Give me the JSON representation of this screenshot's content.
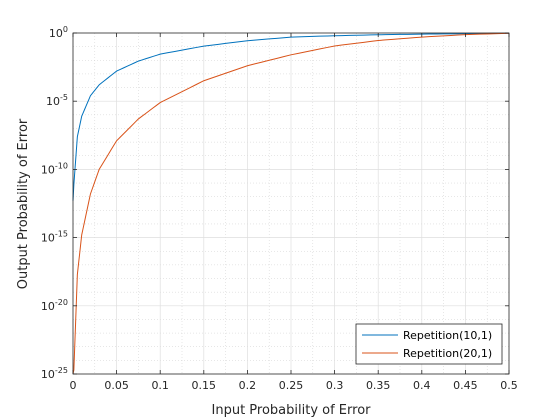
{
  "chart_data": {
    "type": "line",
    "title": "",
    "xlabel": "Input Probability of Error",
    "ylabel": "Output Probability of Error",
    "xlim": [
      0,
      0.5
    ],
    "ylim_log10": [
      -25,
      0
    ],
    "y_scale": "log",
    "grid": true,
    "minor_grid": true,
    "legend_position": "bottom-right",
    "x_ticks": [
      "0",
      "0.05",
      "0.1",
      "0.15",
      "0.2",
      "0.25",
      "0.3",
      "0.35",
      "0.4",
      "0.45",
      "0.5"
    ],
    "y_ticks": [
      {
        "base": "10",
        "exp": "0"
      },
      {
        "base": "10",
        "exp": "-5"
      },
      {
        "base": "10",
        "exp": "-10"
      },
      {
        "base": "10",
        "exp": "-15"
      },
      {
        "base": "10",
        "exp": "-20"
      },
      {
        "base": "10",
        "exp": "-25"
      }
    ],
    "series": [
      {
        "name": "Repetition(10,1)",
        "color": "#0072BD",
        "x": [
          0.001,
          0.005,
          0.01,
          0.02,
          0.03,
          0.05,
          0.075,
          0.1,
          0.15,
          0.2,
          0.25,
          0.3,
          0.35,
          0.4,
          0.45,
          0.5
        ],
        "log10y": [
          -11.1,
          -7.6,
          -6.1,
          -4.6,
          -3.8,
          -2.79,
          -2.06,
          -1.55,
          -0.96,
          -0.57,
          -0.3,
          -0.2,
          -0.13,
          -0.08,
          -0.05,
          -0.02
        ]
      },
      {
        "name": "Repetition(20,1)",
        "color": "#D95319",
        "x": [
          0.001,
          0.005,
          0.01,
          0.02,
          0.03,
          0.05,
          0.075,
          0.1,
          0.15,
          0.2,
          0.25,
          0.3,
          0.35,
          0.4,
          0.45,
          0.5
        ],
        "log10y": [
          -24.7,
          -17.7,
          -14.8,
          -11.8,
          -10.0,
          -7.9,
          -6.3,
          -5.1,
          -3.5,
          -2.4,
          -1.6,
          -0.95,
          -0.55,
          -0.3,
          -0.12,
          -0.02
        ]
      }
    ]
  }
}
